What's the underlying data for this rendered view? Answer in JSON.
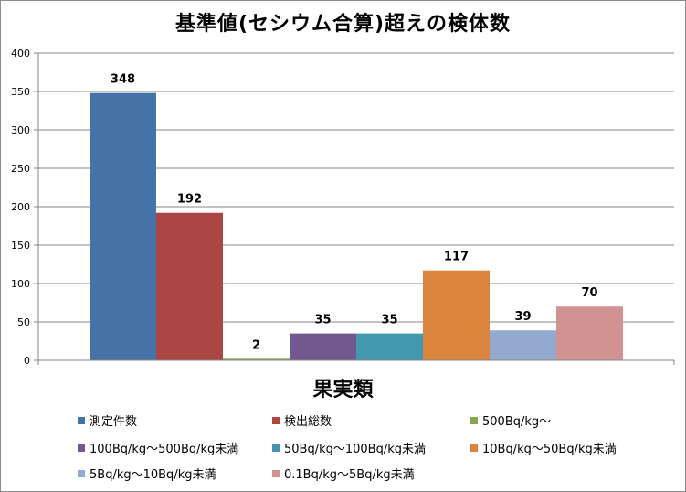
{
  "chart_data": {
    "type": "bar",
    "title": "基準値(セシウム合算)超えの検体数",
    "categories": [
      "果実類"
    ],
    "ylim": [
      0,
      400
    ],
    "yticks": [
      0,
      50,
      100,
      150,
      200,
      250,
      300,
      350,
      400
    ],
    "grid": true,
    "legend_position": "bottom",
    "series": [
      {
        "name": "測定件数",
        "values": [
          348
        ],
        "color": "#4572A7"
      },
      {
        "name": "検出総数",
        "values": [
          192
        ],
        "color": "#AA4643"
      },
      {
        "name": "500Bq/kg〜",
        "values": [
          2
        ],
        "color": "#89A54E"
      },
      {
        "name": "100Bq/kg〜500Bq/kg未満",
        "values": [
          35
        ],
        "color": "#71588F"
      },
      {
        "name": "50Bq/kg〜100Bq/kg未満",
        "values": [
          35
        ],
        "color": "#4198AF"
      },
      {
        "name": "10Bq/kg〜50Bq/kg未満",
        "values": [
          117
        ],
        "color": "#DB843D"
      },
      {
        "name": "5Bq/kg〜10Bq/kg未満",
        "values": [
          39
        ],
        "color": "#93A9CF"
      },
      {
        "name": "0.1Bq/kg〜5Bq/kg未満",
        "values": [
          70
        ],
        "color": "#D19392"
      }
    ]
  }
}
